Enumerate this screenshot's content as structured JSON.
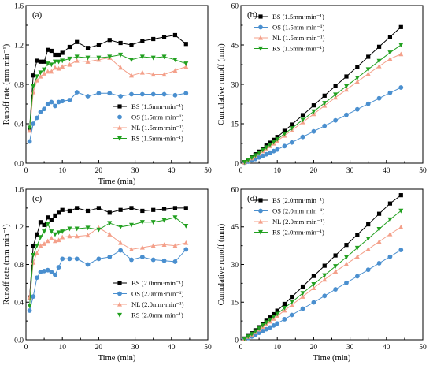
{
  "chart_data": [
    {
      "panel_label": "(a)",
      "type": "line",
      "xlabel": "Time (min)",
      "ylabel": "Runoff rate (mm·min⁻¹)",
      "xlim": [
        0,
        50
      ],
      "ylim": [
        0,
        1.6
      ],
      "xticks": [
        0,
        10,
        20,
        30,
        40,
        50
      ],
      "yticks": [
        0.0,
        0.4,
        0.8,
        1.2,
        1.6
      ],
      "ytick_labels": [
        "0.0",
        "0.4",
        "0.8",
        "1.2",
        "1.6"
      ],
      "legend_position": "bottom-right",
      "series": [
        {
          "name": "BS",
          "note": "(1.5mm·min⁻¹)",
          "color": "#000000",
          "marker": "square",
          "x": [
            1,
            2,
            3,
            4,
            5,
            6,
            7,
            8,
            9,
            10,
            12,
            14,
            17,
            20,
            23,
            26,
            29,
            32,
            35,
            38,
            41,
            44
          ],
          "y": [
            0.35,
            0.89,
            1.04,
            1.03,
            1.03,
            1.15,
            1.14,
            1.1,
            1.1,
            1.12,
            1.18,
            1.23,
            1.17,
            1.2,
            1.25,
            1.22,
            1.2,
            1.24,
            1.26,
            1.28,
            1.3,
            1.21
          ]
        },
        {
          "name": "OS",
          "note": "(1.5mm·min⁻¹)",
          "color": "#4a8fcf",
          "marker": "circle",
          "x": [
            1,
            2,
            3,
            4,
            5,
            6,
            7,
            8,
            9,
            10,
            12,
            14,
            17,
            20,
            23,
            26,
            29,
            32,
            35,
            38,
            41,
            44
          ],
          "y": [
            0.22,
            0.4,
            0.46,
            0.52,
            0.55,
            0.6,
            0.62,
            0.58,
            0.62,
            0.63,
            0.64,
            0.72,
            0.68,
            0.71,
            0.71,
            0.68,
            0.7,
            0.7,
            0.7,
            0.7,
            0.69,
            0.71
          ]
        },
        {
          "name": "NL",
          "note": "(1.5mm·min⁻¹)",
          "color": "#f4a08a",
          "marker": "triangle-up",
          "x": [
            1,
            2,
            3,
            4,
            5,
            6,
            7,
            8,
            9,
            10,
            12,
            14,
            17,
            20,
            23,
            26,
            29,
            32,
            35,
            38,
            41,
            44
          ],
          "y": [
            0.33,
            0.72,
            0.84,
            0.88,
            0.91,
            0.93,
            0.93,
            0.97,
            0.96,
            0.98,
            1.0,
            1.04,
            1.03,
            1.05,
            1.07,
            0.97,
            0.89,
            0.92,
            0.9,
            0.9,
            0.94,
            0.98
          ]
        },
        {
          "name": "RS",
          "note": "(1.5mm·min⁻¹)",
          "color": "#22a020",
          "marker": "triangle-down",
          "x": [
            1,
            2,
            3,
            4,
            5,
            6,
            7,
            8,
            9,
            10,
            12,
            14,
            17,
            20,
            23,
            26,
            29,
            32,
            35,
            38,
            41,
            44
          ],
          "y": [
            0.36,
            0.78,
            0.88,
            0.92,
            0.95,
            1.01,
            1.0,
            1.03,
            1.03,
            1.04,
            1.06,
            1.08,
            1.07,
            1.07,
            1.08,
            1.1,
            1.05,
            1.08,
            1.07,
            1.08,
            1.05,
            1.01
          ]
        }
      ]
    },
    {
      "panel_label": "(b)",
      "type": "line",
      "xlabel": "",
      "ylabel": "Cumulative runoff   (mm)",
      "xlim": [
        0,
        50
      ],
      "ylim": [
        0,
        60
      ],
      "xticks": [
        0,
        10,
        20,
        30,
        40,
        50
      ],
      "yticks": [
        0,
        15,
        30,
        45,
        60
      ],
      "ytick_labels": [
        "0",
        "15",
        "30",
        "45",
        "60"
      ],
      "legend_position": "top-left",
      "series": [
        {
          "name": "BS",
          "note": "(1.5mm·min⁻¹)",
          "color": "#000000",
          "marker": "square",
          "x": [
            1,
            2,
            3,
            4,
            5,
            6,
            7,
            8,
            9,
            10,
            12,
            14,
            17,
            20,
            23,
            26,
            29,
            32,
            35,
            38,
            41,
            44
          ],
          "y": [
            0.4,
            1.3,
            2.3,
            3.4,
            4.4,
            5.5,
            6.7,
            7.8,
            8.9,
            10.0,
            12.3,
            14.7,
            18.3,
            22.0,
            25.7,
            29.4,
            33.0,
            36.7,
            40.5,
            44.3,
            48.1,
            51.8
          ]
        },
        {
          "name": "OS",
          "note": "(1.5mm·min⁻¹)",
          "color": "#4a8fcf",
          "marker": "circle",
          "x": [
            1,
            2,
            3,
            4,
            5,
            6,
            7,
            8,
            9,
            10,
            12,
            14,
            17,
            20,
            23,
            26,
            29,
            32,
            35,
            38,
            41,
            44
          ],
          "y": [
            0.2,
            0.6,
            1.1,
            1.6,
            2.2,
            2.8,
            3.4,
            4.0,
            4.6,
            5.2,
            6.5,
            7.9,
            10.0,
            12.1,
            14.2,
            16.3,
            18.4,
            20.5,
            22.6,
            24.7,
            26.8,
            28.8
          ]
        },
        {
          "name": "NL",
          "note": "(1.5mm·min⁻¹)",
          "color": "#f4a08a",
          "marker": "triangle-up",
          "x": [
            1,
            2,
            3,
            4,
            5,
            6,
            7,
            8,
            9,
            10,
            12,
            14,
            17,
            20,
            23,
            26,
            29,
            32,
            35,
            38,
            41,
            44
          ],
          "y": [
            0.3,
            1.0,
            1.9,
            2.8,
            3.7,
            4.6,
            5.6,
            6.5,
            7.5,
            8.5,
            10.5,
            12.5,
            15.6,
            18.7,
            21.9,
            25.0,
            28.0,
            31.0,
            34.0,
            36.9,
            39.7,
            41.5
          ]
        },
        {
          "name": "RS",
          "note": "(1.5mm·min⁻¹)",
          "color": "#22a020",
          "marker": "triangle-down",
          "x": [
            1,
            2,
            3,
            4,
            5,
            6,
            7,
            8,
            9,
            10,
            12,
            14,
            17,
            20,
            23,
            26,
            29,
            32,
            35,
            38,
            41,
            44
          ],
          "y": [
            0.4,
            1.2,
            2.1,
            3.0,
            4.0,
            5.0,
            6.0,
            7.0,
            8.0,
            9.1,
            11.2,
            13.3,
            16.5,
            19.7,
            22.9,
            26.1,
            29.3,
            32.5,
            35.7,
            38.9,
            42.1,
            45.0
          ]
        }
      ]
    },
    {
      "panel_label": "(c)",
      "type": "line",
      "xlabel": "Time (min)",
      "ylabel": "Runoff rate (mm·min⁻¹)",
      "xlim": [
        0,
        50
      ],
      "ylim": [
        0,
        1.6
      ],
      "xticks": [
        0,
        10,
        20,
        30,
        40,
        50
      ],
      "yticks": [
        0.0,
        0.4,
        0.8,
        1.2,
        1.6
      ],
      "ytick_labels": [
        "0.0",
        "0.4",
        "0.8",
        "1.2",
        "1.6"
      ],
      "legend_position": "bottom-right",
      "series": [
        {
          "name": "BS",
          "note": "(2.0mm·min⁻¹)",
          "color": "#000000",
          "marker": "square",
          "x": [
            1,
            2,
            3,
            4,
            5,
            6,
            7,
            8,
            9,
            10,
            12,
            14,
            17,
            20,
            23,
            26,
            29,
            32,
            35,
            38,
            41,
            44
          ],
          "y": [
            0.45,
            1.0,
            1.12,
            1.25,
            1.22,
            1.3,
            1.27,
            1.32,
            1.35,
            1.38,
            1.37,
            1.4,
            1.37,
            1.4,
            1.35,
            1.38,
            1.4,
            1.37,
            1.38,
            1.39,
            1.4,
            1.4
          ]
        },
        {
          "name": "OS",
          "note": "(2.0mm·min⁻¹)",
          "color": "#4a8fcf",
          "marker": "circle",
          "x": [
            1,
            2,
            3,
            4,
            5,
            6,
            7,
            8,
            9,
            10,
            12,
            14,
            17,
            20,
            23,
            26,
            29,
            32,
            35,
            38,
            41,
            44
          ],
          "y": [
            0.31,
            0.46,
            0.66,
            0.72,
            0.73,
            0.74,
            0.72,
            0.69,
            0.77,
            0.86,
            0.86,
            0.86,
            0.8,
            0.86,
            0.88,
            0.95,
            0.85,
            0.88,
            0.85,
            0.84,
            0.83,
            0.96
          ]
        },
        {
          "name": "NL",
          "note": "(2.0mm·min⁻¹)",
          "color": "#f4a08a",
          "marker": "triangle-up",
          "x": [
            1,
            2,
            3,
            4,
            5,
            6,
            7,
            8,
            9,
            10,
            12,
            14,
            17,
            20,
            23,
            26,
            29,
            32,
            35,
            38,
            41,
            44
          ],
          "y": [
            0.45,
            0.82,
            0.92,
            1.0,
            1.02,
            1.05,
            1.08,
            1.05,
            1.06,
            1.09,
            1.1,
            1.1,
            1.11,
            1.19,
            1.12,
            1.03,
            0.96,
            0.98,
            1.0,
            1.01,
            1.0,
            1.03
          ]
        },
        {
          "name": "RS",
          "note": "(2.0mm·min⁻¹)",
          "color": "#22a020",
          "marker": "triangle-down",
          "x": [
            1,
            2,
            3,
            4,
            5,
            6,
            7,
            8,
            9,
            10,
            12,
            14,
            17,
            20,
            23,
            26,
            29,
            32,
            35,
            38,
            41,
            44
          ],
          "y": [
            0.36,
            0.9,
            1.0,
            1.09,
            1.15,
            1.23,
            1.15,
            1.12,
            1.14,
            1.15,
            1.18,
            1.18,
            1.19,
            1.17,
            1.24,
            1.2,
            1.22,
            1.25,
            1.25,
            1.27,
            1.3,
            1.21
          ]
        }
      ]
    },
    {
      "panel_label": "(d)",
      "type": "line",
      "xlabel": "Time (min)",
      "ylabel": "Cumulative runoff   (mm)",
      "xlim": [
        0,
        50
      ],
      "ylim": [
        0,
        60
      ],
      "xticks": [
        0,
        10,
        20,
        30,
        40,
        50
      ],
      "yticks": [
        0,
        15,
        30,
        45,
        60
      ],
      "ytick_labels": [
        "0",
        "15",
        "30",
        "45",
        "60"
      ],
      "legend_position": "top-left",
      "series": [
        {
          "name": "BS",
          "note": "(2.0mm·min⁻¹)",
          "color": "#000000",
          "marker": "square",
          "x": [
            1,
            2,
            3,
            4,
            5,
            6,
            7,
            8,
            9,
            10,
            12,
            14,
            17,
            20,
            23,
            26,
            29,
            32,
            35,
            38,
            41,
            44
          ],
          "y": [
            0.5,
            1.5,
            2.6,
            3.8,
            5.0,
            6.3,
            7.6,
            8.9,
            10.2,
            11.6,
            14.3,
            17.1,
            21.2,
            25.4,
            29.5,
            33.6,
            37.8,
            41.9,
            46.0,
            50.2,
            54.3,
            57.6
          ]
        },
        {
          "name": "OS",
          "note": "(2.0mm·min⁻¹)",
          "color": "#4a8fcf",
          "marker": "circle",
          "x": [
            1,
            2,
            3,
            4,
            5,
            6,
            7,
            8,
            9,
            10,
            12,
            14,
            17,
            20,
            23,
            26,
            29,
            32,
            35,
            38,
            41,
            44
          ],
          "y": [
            0.3,
            0.7,
            1.3,
            2.0,
            2.8,
            3.5,
            4.2,
            4.9,
            5.7,
            6.5,
            8.2,
            9.9,
            12.4,
            14.9,
            17.5,
            20.1,
            22.7,
            25.3,
            27.9,
            30.5,
            33.1,
            35.8
          ]
        },
        {
          "name": "NL",
          "note": "(2.0mm·min⁻¹)",
          "color": "#f4a08a",
          "marker": "triangle-up",
          "x": [
            1,
            2,
            3,
            4,
            5,
            6,
            7,
            8,
            9,
            10,
            12,
            14,
            17,
            20,
            23,
            26,
            29,
            32,
            35,
            38,
            41,
            44
          ],
          "y": [
            0.4,
            1.2,
            2.1,
            3.1,
            4.1,
            5.2,
            6.3,
            7.3,
            8.4,
            9.5,
            11.7,
            13.9,
            17.2,
            20.6,
            24.0,
            27.2,
            30.2,
            33.1,
            36.1,
            39.1,
            42.1,
            44.9
          ]
        },
        {
          "name": "RS",
          "note": "(2.0mm·min⁻¹)",
          "color": "#22a020",
          "marker": "triangle-down",
          "x": [
            1,
            2,
            3,
            4,
            5,
            6,
            7,
            8,
            9,
            10,
            12,
            14,
            17,
            20,
            23,
            26,
            29,
            32,
            35,
            38,
            41,
            44
          ],
          "y": [
            0.4,
            1.3,
            2.3,
            3.4,
            4.5,
            5.8,
            6.9,
            8.0,
            9.2,
            10.3,
            12.7,
            15.0,
            18.6,
            22.1,
            25.7,
            29.3,
            32.9,
            36.6,
            40.3,
            44.1,
            47.9,
            51.4
          ]
        }
      ]
    }
  ]
}
